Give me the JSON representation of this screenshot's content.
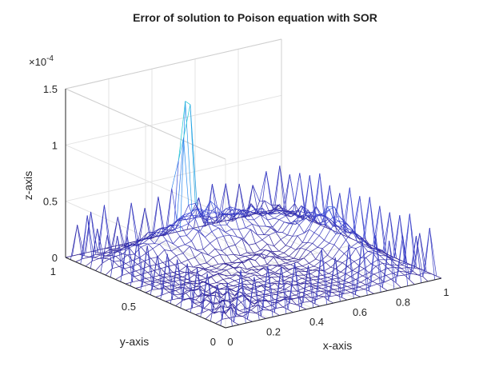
{
  "chart_data": {
    "type": "surface-mesh",
    "title": "Error of solution to Poison equation with SOR",
    "xlabel": "x-axis",
    "ylabel": "y-axis",
    "zlabel": "z-axis",
    "z_exponent_label": "×10",
    "z_exponent_power": "-4",
    "xlim": [
      0,
      1
    ],
    "ylim": [
      0,
      1
    ],
    "zlim": [
      0,
      0.00015
    ],
    "x_ticks": [
      "0",
      "0.2",
      "0.4",
      "0.6",
      "0.8",
      "1"
    ],
    "x_tick_values": [
      0,
      0.2,
      0.4,
      0.6,
      0.8,
      1
    ],
    "y_ticks": [
      "0",
      "0.5",
      "1"
    ],
    "y_tick_values": [
      0,
      0.5,
      1
    ],
    "z_ticks": [
      "0",
      "0.5",
      "1",
      "1.5"
    ],
    "z_tick_values": [
      0,
      5e-05,
      0.0001,
      0.00015
    ],
    "grid": true,
    "colormap": [
      "#2b1a8c",
      "#3c47d6",
      "#2a8df0",
      "#1ec8d2"
    ],
    "grid_resolution": 32,
    "features": {
      "peak": {
        "x": 0.52,
        "y": 0.95,
        "z": 0.000145
      },
      "ridge_along_far_edges_z": 5e-05,
      "edge_spike_z": 5e-05,
      "interior_noise_max_z": 1.5e-05
    }
  }
}
